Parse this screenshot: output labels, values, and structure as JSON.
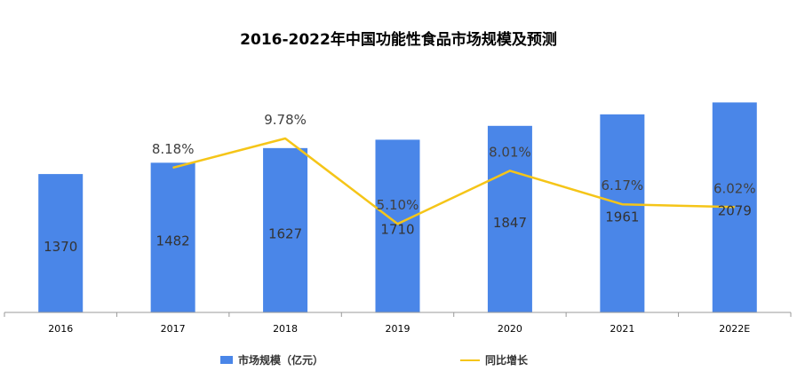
{
  "chart_data": {
    "type": "bar",
    "title": "2016-2022年中国功能性食品市场规模及预测",
    "categories": [
      "2016",
      "2017",
      "2018",
      "2019",
      "2020",
      "2021",
      "2022E"
    ],
    "series": [
      {
        "name": "市场规模（亿元）",
        "type": "bar",
        "values": [
          1370,
          1482,
          1627,
          1710,
          1847,
          1961,
          2079
        ],
        "labels": [
          "1370",
          "1482",
          "1627",
          "1710",
          "1847",
          "1961",
          "2079"
        ],
        "color": "#4A86E8"
      },
      {
        "name": "同比增长",
        "type": "line",
        "values": [
          null,
          8.18,
          9.78,
          5.1,
          8.01,
          6.17,
          6.02
        ],
        "labels": [
          "",
          "8.18%",
          "9.78%",
          "5.10%",
          "8.01%",
          "6.17%",
          "6.02%"
        ],
        "unit": "%",
        "color": "#F5C518"
      }
    ],
    "grid": false,
    "legend_position": "bottom"
  }
}
